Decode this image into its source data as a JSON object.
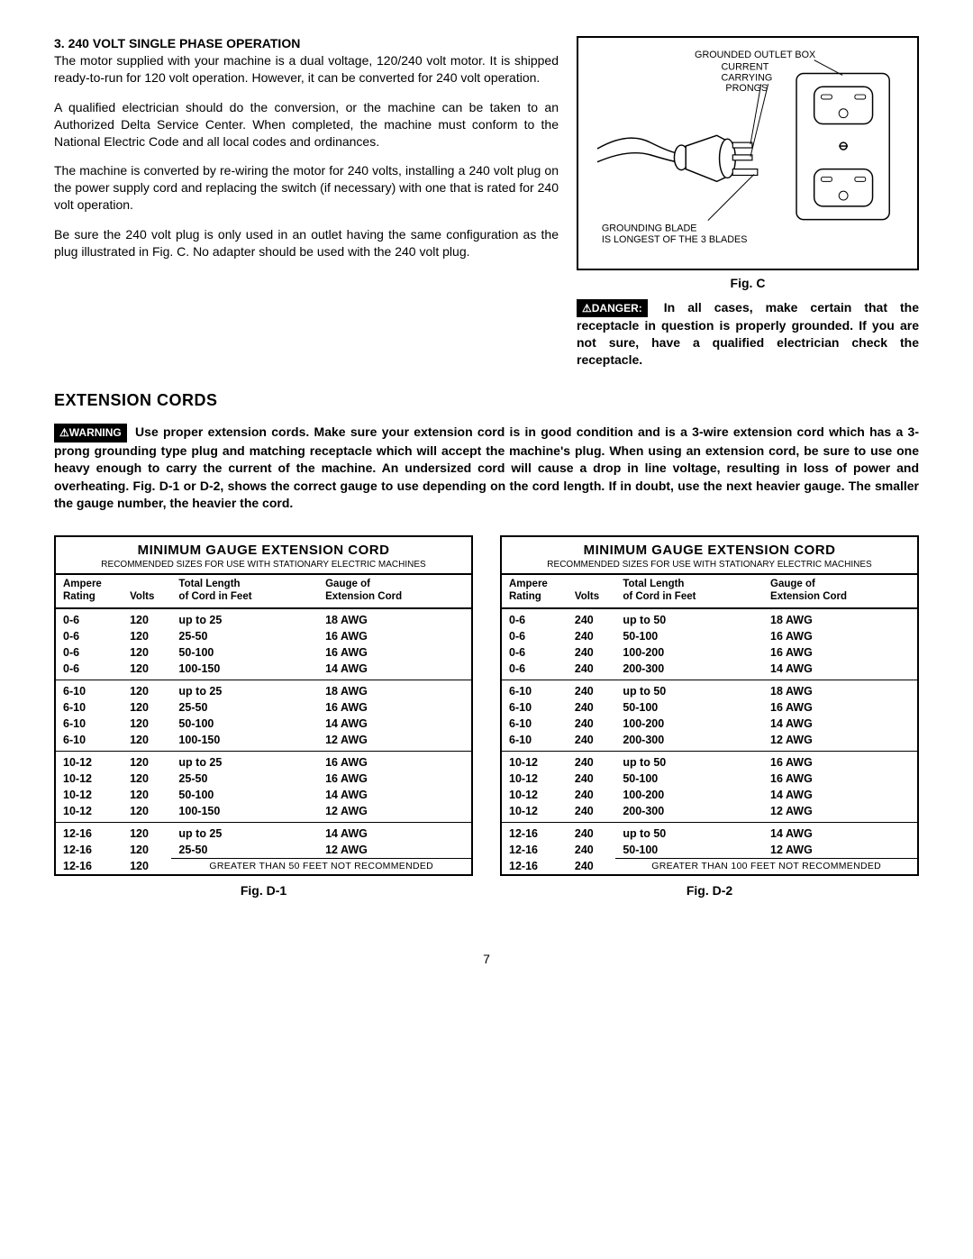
{
  "section3": {
    "heading": "3. 240 VOLT SINGLE PHASE OPERATION",
    "p1": "The motor supplied with your machine is a dual voltage, 120/240 volt motor. It is shipped ready-to-run for 120 volt operation. However, it can be converted for 240 volt operation.",
    "p2": "A qualified electrician should do the conversion, or the machine can be taken to an Authorized Delta Service Center. When completed, the machine must conform to the National Electric Code and all local codes and ordinances.",
    "p3": "The machine is converted by re-wiring the motor for 240 volts, installing a 240 volt plug on the power supply cord and replacing the switch (if necessary) with one that is rated for 240 volt operation.",
    "p4": "Be sure the 240 volt plug is only used in an outlet having the same configuration as the plug illustrated in Fig. C. No adapter should be used with the 240 volt plug."
  },
  "figc": {
    "label_box": "GROUNDED OUTLET BOX",
    "label_prongs1": "CURRENT",
    "label_prongs2": "CARRYING",
    "label_prongs3": "PRONGS",
    "label_blade1": "GROUNDING BLADE",
    "label_blade2": "IS LONGEST OF THE 3 BLADES",
    "caption": "Fig. C"
  },
  "danger": {
    "label": "⚠DANGER:",
    "text": "In all cases, make certain that the receptacle in question is properly grounded. If you are not sure, have a qualified electrician check the receptacle."
  },
  "ext": {
    "heading": "EXTENSION CORDS",
    "warn_label": "⚠WARNING",
    "warn_text": "Use proper extension cords. Make sure your extension cord is in good condition and is a 3-wire extension cord which has a 3-prong grounding type plug and matching receptacle which will accept the machine's plug. When using an extension cord, be sure to use one heavy enough to carry the current of the machine. An undersized cord will cause a drop in line voltage, resulting in loss of power and overheating. Fig. D-1 or D-2, shows the correct gauge to use depending on the cord length. If in doubt, use the next heavier gauge. The smaller the gauge number, the heavier the cord."
  },
  "tables": {
    "title": "MINIMUM GAUGE EXTENSION CORD",
    "subtitle": "RECOMMENDED SIZES FOR USE WITH STATIONARY ELECTRIC MACHINES",
    "col1a": "Ampere",
    "col1b": "Rating",
    "col2": "Volts",
    "col3a": "Total Length",
    "col3b": "of Cord in Feet",
    "col4a": "Gauge of",
    "col4b": "Extension Cord",
    "d1": {
      "caption": "Fig. D-1",
      "volts": "120",
      "note": "GREATER THAN 50 FEET NOT RECOMMENDED",
      "groups": [
        {
          "amp": "0-6",
          "rows": [
            [
              "up to 25",
              "18 AWG"
            ],
            [
              "25-50",
              "16 AWG"
            ],
            [
              "50-100",
              "16 AWG"
            ],
            [
              "100-150",
              "14 AWG"
            ]
          ]
        },
        {
          "amp": "6-10",
          "rows": [
            [
              "up to 25",
              "18 AWG"
            ],
            [
              "25-50",
              "16 AWG"
            ],
            [
              "50-100",
              "14 AWG"
            ],
            [
              "100-150",
              "12 AWG"
            ]
          ]
        },
        {
          "amp": "10-12",
          "rows": [
            [
              "up to 25",
              "16 AWG"
            ],
            [
              "25-50",
              "16 AWG"
            ],
            [
              "50-100",
              "14 AWG"
            ],
            [
              "100-150",
              "12 AWG"
            ]
          ]
        },
        {
          "amp": "12-16",
          "rows": [
            [
              "up to 25",
              "14 AWG"
            ],
            [
              "25-50",
              "12 AWG"
            ]
          ]
        }
      ],
      "last_amp": "12-16"
    },
    "d2": {
      "caption": "Fig. D-2",
      "volts": "240",
      "note": "GREATER THAN 100 FEET NOT RECOMMENDED",
      "groups": [
        {
          "amp": "0-6",
          "rows": [
            [
              "up to 50",
              "18 AWG"
            ],
            [
              "50-100",
              "16 AWG"
            ],
            [
              "100-200",
              "16 AWG"
            ],
            [
              "200-300",
              "14 AWG"
            ]
          ]
        },
        {
          "amp": "6-10",
          "rows": [
            [
              "up to 50",
              "18 AWG"
            ],
            [
              "50-100",
              "16 AWG"
            ],
            [
              "100-200",
              "14 AWG"
            ],
            [
              "200-300",
              "12 AWG"
            ]
          ]
        },
        {
          "amp": "10-12",
          "rows": [
            [
              "up to 50",
              "16 AWG"
            ],
            [
              "50-100",
              "16 AWG"
            ],
            [
              "100-200",
              "14 AWG"
            ],
            [
              "200-300",
              "12 AWG"
            ]
          ]
        },
        {
          "amp": "12-16",
          "rows": [
            [
              "up to 50",
              "14 AWG"
            ],
            [
              "50-100",
              "12 AWG"
            ]
          ]
        }
      ],
      "last_amp": "12-16"
    }
  },
  "page": "7"
}
